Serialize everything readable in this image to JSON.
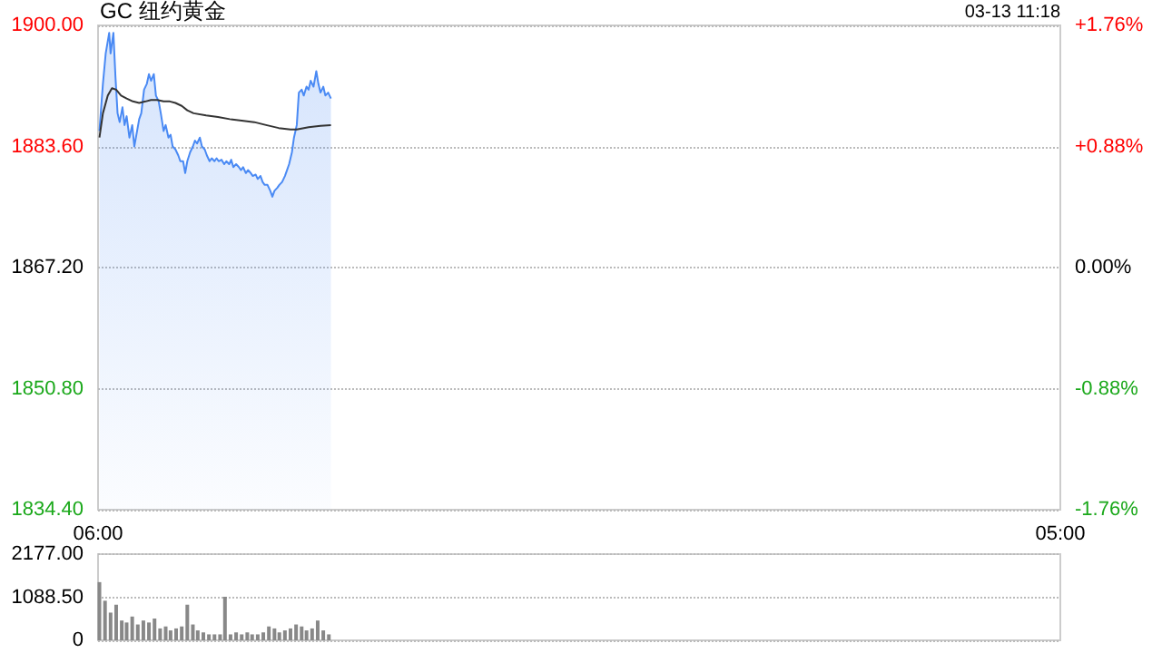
{
  "chart_data": [
    {
      "type": "area",
      "title": "GC 纽约黄金",
      "annotations": [
        "03-13 11:18"
      ],
      "xlim": [
        "--03-13T06:00",
        "--03-14T05:00"
      ],
      "xticks": [
        {
          "value": "--03-13T06:00",
          "label": "06:00"
        },
        {
          "value": "--03-14T05:00",
          "label": "05:00"
        }
      ],
      "ylim": [
        1834.4,
        1900
      ],
      "yticks": [
        {
          "value": 1834.4,
          "label": "1834.40"
        },
        {
          "value": 1850.8,
          "label": "1850.80"
        },
        {
          "value": 1867.2,
          "label": "1867.20"
        },
        {
          "value": 1883.6,
          "label": "1883.60"
        },
        {
          "value": 1900,
          "label": "1900.00"
        }
      ],
      "y2lim": [
        -1.76,
        1.76
      ],
      "y2ticks": [
        {
          "value": -1.76,
          "label": "-1.76%"
        },
        {
          "value": -0.88,
          "label": "-0.88%"
        },
        {
          "value": 0,
          "label": "0.00%"
        },
        {
          "value": 0.88,
          "label": "+0.88%"
        },
        {
          "value": 1.76,
          "label": "+1.76%"
        }
      ],
      "grid": "y",
      "marker": "none",
      "series": [
        {
          "color": "#4a8af4",
          "x": [
            "--03-13T06:02",
            "--03-13T06:07",
            "--03-13T06:11",
            "--03-13T06:16",
            "--03-13T06:18",
            "--03-13T06:22",
            "--03-13T06:25",
            "--03-13T06:28",
            "--03-13T06:31",
            "--03-13T06:35",
            "--03-13T06:38",
            "--03-13T06:41",
            "--03-13T06:45",
            "--03-13T06:49",
            "--03-13T06:52",
            "--03-13T06:56",
            "--03-13T06:59",
            "--03-13T07:02",
            "--03-13T07:06",
            "--03-13T07:10",
            "--03-13T07:13",
            "--03-13T07:16",
            "--03-13T07:20",
            "--03-13T07:23",
            "--03-13T07:27",
            "--03-13T07:30",
            "--03-13T07:34",
            "--03-13T07:37",
            "--03-13T07:41",
            "--03-13T07:44",
            "--03-13T07:47",
            "--03-13T07:51",
            "--03-13T07:55",
            "--03-13T07:58",
            "--03-13T08:02",
            "--03-13T08:05",
            "--03-13T08:08",
            "--03-13T08:12",
            "--03-13T08:16",
            "--03-13T08:19",
            "--03-13T08:22",
            "--03-13T08:26",
            "--03-13T08:29",
            "--03-13T08:33",
            "--03-13T08:36",
            "--03-13T08:40",
            "--03-13T08:43",
            "--03-13T08:47",
            "--03-13T08:50",
            "--03-13T08:53",
            "--03-13T08:57",
            "--03-13T09:01",
            "--03-13T09:04",
            "--03-13T09:08",
            "--03-13T09:11",
            "--03-13T09:14",
            "--03-13T09:18",
            "--03-13T09:22",
            "--03-13T09:25",
            "--03-13T09:28",
            "--03-13T09:32",
            "--03-13T09:35",
            "--03-13T09:39",
            "--03-13T09:42",
            "--03-13T09:46",
            "--03-13T09:49",
            "--03-13T09:53",
            "--03-13T09:56",
            "--03-13T09:59",
            "--03-13T10:03",
            "--03-13T10:07",
            "--03-13T10:10",
            "--03-13T10:13",
            "--03-13T10:17",
            "--03-13T10:20",
            "--03-13T10:24",
            "--03-13T10:28",
            "--03-13T10:31",
            "--03-13T10:34",
            "--03-13T10:38",
            "--03-13T10:41",
            "--03-13T10:45",
            "--03-13T10:48",
            "--03-13T10:52",
            "--03-13T10:55",
            "--03-13T10:59",
            "--03-13T11:02",
            "--03-13T11:05",
            "--03-13T11:09",
            "--03-13T11:13",
            "--03-13T11:16",
            "--03-13T11:19",
            "--03-13T11:23",
            "--03-13T11:26",
            "--03-13T11:30",
            "--03-13T11:34"
          ],
          "values": [
            1885.7,
            1892.1,
            1896.2,
            1899.0,
            1896.2,
            1899.0,
            1893.0,
            1888.1,
            1886.9,
            1888.9,
            1886.5,
            1887.7,
            1884.8,
            1886.5,
            1883.6,
            1885.7,
            1887.3,
            1888.1,
            1891.3,
            1892.1,
            1893.4,
            1892.5,
            1893.4,
            1890.5,
            1889.7,
            1888.1,
            1885.7,
            1886.5,
            1884.8,
            1885.2,
            1883.6,
            1883.2,
            1882.4,
            1881.6,
            1881.6,
            1880.0,
            1881.6,
            1882.8,
            1883.6,
            1884.4,
            1884.0,
            1884.8,
            1883.6,
            1883.2,
            1882.4,
            1881.6,
            1882.0,
            1881.6,
            1882.0,
            1881.6,
            1881.8,
            1881.2,
            1881.6,
            1881.2,
            1881.8,
            1880.8,
            1881.2,
            1880.8,
            1880.4,
            1880.8,
            1880.0,
            1880.4,
            1880.0,
            1879.6,
            1879.8,
            1879.2,
            1879.6,
            1878.8,
            1878.4,
            1878.4,
            1877.6,
            1876.8,
            1877.6,
            1878.0,
            1878.4,
            1878.8,
            1879.6,
            1880.4,
            1881.2,
            1882.8,
            1884.8,
            1886.5,
            1890.9,
            1891.3,
            1890.5,
            1891.7,
            1891.3,
            1892.5,
            1891.7,
            1893.8,
            1892.1,
            1890.9,
            1891.7,
            1890.5,
            1890.9,
            1890.1
          ]
        },
        {
          "type": "line",
          "color": "#333333",
          "x": [
            "--03-13T06:02",
            "--03-13T06:07",
            "--03-13T06:14",
            "--03-13T06:20",
            "--03-13T06:26",
            "--03-13T06:33",
            "--03-13T06:41",
            "--03-13T06:50",
            "--03-13T06:59",
            "--03-13T07:08",
            "--03-13T07:16",
            "--03-13T07:25",
            "--03-13T07:34",
            "--03-13T07:43",
            "--03-13T07:51",
            "--03-13T08:00",
            "--03-13T08:08",
            "--03-13T08:17",
            "--03-13T08:35",
            "--03-13T08:52",
            "--03-13T09:09",
            "--03-13T09:26",
            "--03-13T09:44",
            "--03-13T10:01",
            "--03-13T10:19",
            "--03-13T10:36",
            "--03-13T10:45",
            "--03-13T11:02",
            "--03-13T11:19",
            "--03-13T11:34"
          ],
          "values": [
            1884.8,
            1888.1,
            1890.5,
            1891.5,
            1891.3,
            1890.5,
            1890.1,
            1889.7,
            1889.5,
            1889.7,
            1889.9,
            1889.9,
            1889.7,
            1889.7,
            1889.5,
            1889.1,
            1888.5,
            1888.1,
            1887.8,
            1887.6,
            1887.3,
            1887.1,
            1886.9,
            1886.5,
            1886.1,
            1885.9,
            1885.9,
            1886.2,
            1886.4,
            1886.5
          ]
        }
      ]
    },
    {
      "type": "bar",
      "xlim": [
        "--03-13T06:00",
        "--03-14T05:00"
      ],
      "ylim": [
        0,
        2177
      ],
      "yticks": [
        {
          "value": 0,
          "label": "0"
        },
        {
          "value": 1088.5,
          "label": "1088.50"
        },
        {
          "value": 2177,
          "label": "2177.00"
        }
      ],
      "tick_labels": "y",
      "grid": "y",
      "series": [
        {
          "color": "#888888",
          "x": [
            "--03-13T06:02",
            "--03-13T06:10",
            "--03-13T06:18",
            "--03-13T06:26",
            "--03-13T06:34",
            "--03-13T06:41",
            "--03-13T06:49",
            "--03-13T06:57",
            "--03-13T07:05",
            "--03-13T07:13",
            "--03-13T07:21",
            "--03-13T07:29",
            "--03-13T07:37",
            "--03-13T07:44",
            "--03-13T07:52",
            "--03-13T08:00",
            "--03-13T08:08",
            "--03-13T08:16",
            "--03-13T08:23",
            "--03-13T08:31",
            "--03-13T08:39",
            "--03-13T08:47",
            "--03-13T08:55",
            "--03-13T09:02",
            "--03-13T09:10",
            "--03-13T09:18",
            "--03-13T09:26",
            "--03-13T09:34",
            "--03-13T09:41",
            "--03-13T09:49",
            "--03-13T09:57",
            "--03-13T10:05",
            "--03-13T10:13",
            "--03-13T10:20",
            "--03-13T10:28",
            "--03-13T10:36",
            "--03-13T10:44",
            "--03-13T10:52",
            "--03-13T10:59",
            "--03-13T11:07",
            "--03-13T11:15",
            "--03-13T11:23",
            "--03-13T11:31"
          ],
          "values": [
            1470,
            1000,
            700,
            900,
            500,
            450,
            600,
            400,
            500,
            450,
            550,
            300,
            350,
            250,
            300,
            350,
            900,
            400,
            250,
            200,
            150,
            150,
            150,
            1100,
            150,
            200,
            150,
            200,
            150,
            150,
            200,
            350,
            300,
            200,
            250,
            300,
            400,
            350,
            250,
            300,
            500,
            250,
            150
          ]
        }
      ]
    }
  ]
}
